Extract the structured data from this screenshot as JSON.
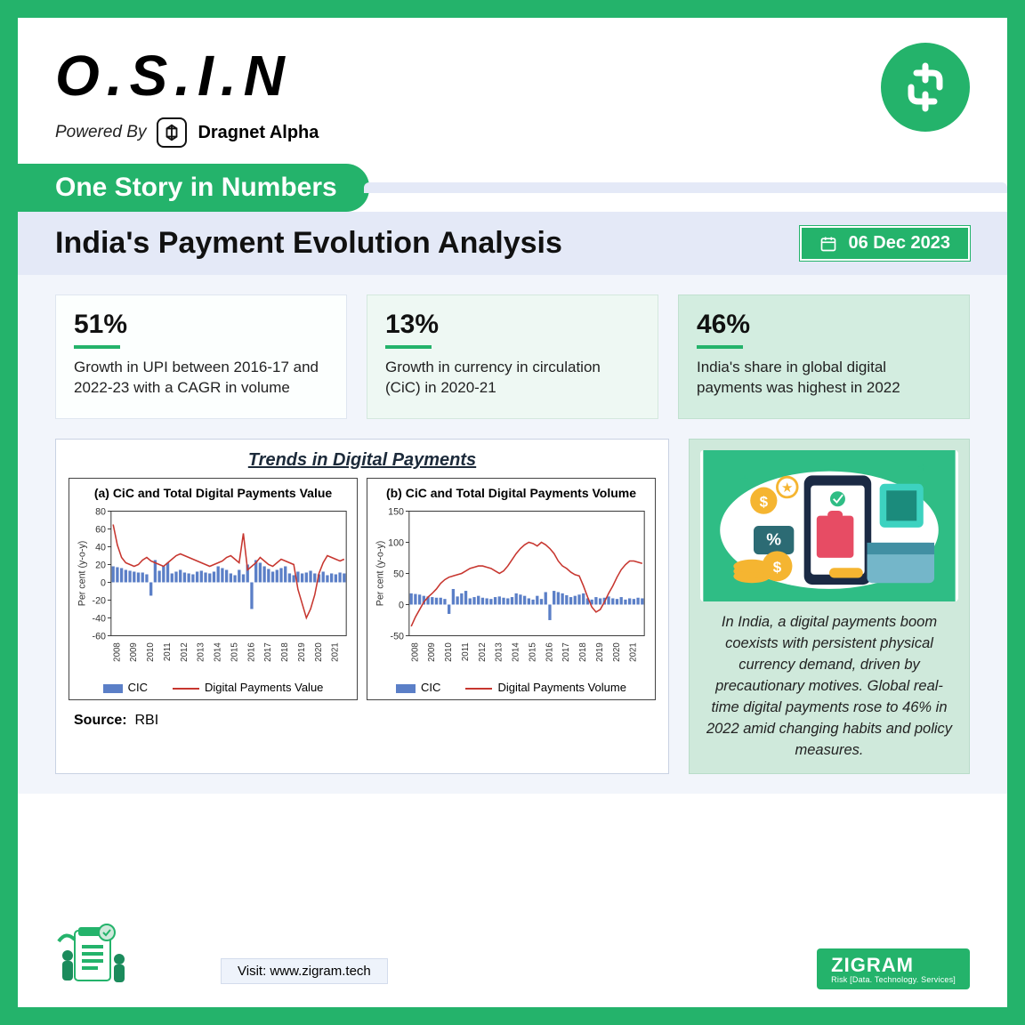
{
  "brand": "O.S.I.N",
  "powered_label": "Powered By",
  "powered_name": "Dragnet Alpha",
  "section_pill": "One Story in Numbers",
  "page_title": "India's Payment Evolution Analysis",
  "date": "06 Dec 2023",
  "stats": [
    {
      "value": "51%",
      "desc": "Growth in UPI between 2016-17 and 2022-23 with a CAGR in volume"
    },
    {
      "value": "13%",
      "desc": "Growth in currency in circulation (CiC) in 2020-21"
    },
    {
      "value": "46%",
      "desc": "India's share in global digital payments was highest in 2022"
    }
  ],
  "chart_section_title": "Trends in Digital Payments",
  "colors": {
    "brand_green": "#24b36b",
    "bar_color": "#5b7fc7",
    "line_color": "#c7362f",
    "axis_color": "#333333",
    "grid_color": "#cccccc"
  },
  "chart_a": {
    "title": "(a) CiC and Total Digital Payments Value",
    "ylabel": "Per cent (y-o-y)",
    "ylim": [
      -60,
      80
    ],
    "ytick_step": 20,
    "years": [
      "2008",
      "2009",
      "2010",
      "2011",
      "2012",
      "2013",
      "2014",
      "2015",
      "2016",
      "2017",
      "2018",
      "2019",
      "2020",
      "2021"
    ],
    "bars": [
      18,
      17,
      16,
      14,
      13,
      12,
      11,
      11,
      9,
      -15,
      25,
      13,
      18,
      22,
      10,
      12,
      14,
      11,
      10,
      9,
      12,
      13,
      11,
      10,
      12,
      18,
      16,
      14,
      10,
      8,
      14,
      9,
      20,
      -30,
      25,
      22,
      18,
      15,
      12,
      14,
      16,
      18,
      10,
      8,
      12,
      10,
      11,
      13,
      10,
      9,
      12,
      8,
      10,
      9,
      11,
      10
    ],
    "line": [
      65,
      42,
      28,
      22,
      20,
      18,
      20,
      25,
      28,
      24,
      22,
      20,
      18,
      22,
      26,
      30,
      32,
      30,
      28,
      26,
      24,
      22,
      20,
      18,
      20,
      22,
      24,
      28,
      30,
      26,
      22,
      55,
      14,
      18,
      22,
      28,
      24,
      20,
      18,
      22,
      26,
      24,
      22,
      20,
      -8,
      -24,
      -40,
      -30,
      -14,
      10,
      22,
      30,
      28,
      26,
      24,
      26
    ],
    "legend_bar": "CIC",
    "legend_line": "Digital Payments Value"
  },
  "chart_b": {
    "title": "(b) CiC and Total Digital Payments Volume",
    "ylabel": "Per cent (y-o-y)",
    "ylim": [
      -50,
      150
    ],
    "ytick_step": 50,
    "years": [
      "2008",
      "2009",
      "2010",
      "2011",
      "2012",
      "2013",
      "2014",
      "2015",
      "2016",
      "2017",
      "2018",
      "2019",
      "2020",
      "2021"
    ],
    "bars": [
      18,
      17,
      16,
      14,
      13,
      12,
      11,
      11,
      9,
      -15,
      25,
      13,
      18,
      22,
      10,
      12,
      14,
      11,
      10,
      9,
      12,
      13,
      11,
      10,
      12,
      18,
      16,
      14,
      10,
      8,
      14,
      9,
      20,
      -25,
      22,
      20,
      18,
      15,
      12,
      14,
      16,
      18,
      10,
      8,
      12,
      10,
      11,
      13,
      10,
      9,
      12,
      8,
      10,
      9,
      11,
      10
    ],
    "line": [
      -35,
      -20,
      -8,
      4,
      12,
      18,
      25,
      34,
      40,
      44,
      46,
      48,
      50,
      54,
      58,
      60,
      62,
      62,
      60,
      58,
      54,
      50,
      54,
      62,
      72,
      82,
      90,
      96,
      100,
      98,
      94,
      100,
      96,
      90,
      82,
      70,
      62,
      58,
      52,
      48,
      46,
      30,
      12,
      -4,
      -12,
      -8,
      4,
      18,
      30,
      44,
      56,
      64,
      70,
      70,
      68,
      66
    ],
    "legend_bar": "CIC",
    "legend_line": "Digital Payments Volume"
  },
  "source_label": "Source:",
  "source_value": "RBI",
  "info_text": "In India, a digital payments boom coexists with persistent physical currency demand, driven by precautionary motives. Global real-time digital payments rose to 46% in 2022 amid changing habits and policy measures.",
  "visit_label": "Visit:",
  "visit_url": "www.zigram.tech",
  "footer_brand": "ZIGRAM",
  "footer_tag": "Risk [Data. Technology. Services]"
}
